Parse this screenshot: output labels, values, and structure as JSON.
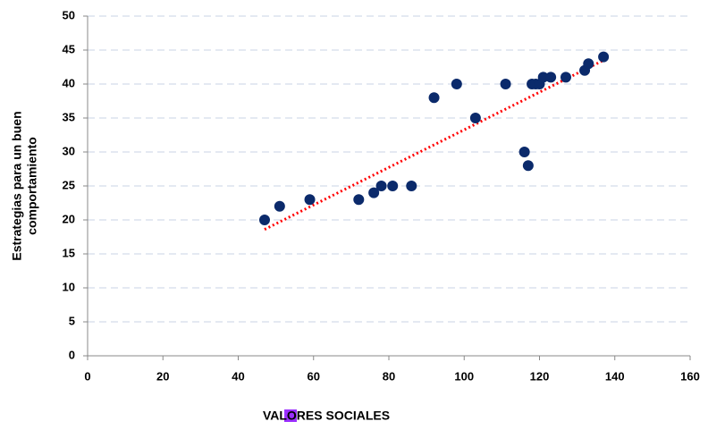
{
  "chart_data": {
    "type": "scatter",
    "x_label": "VALORES SOCIALES",
    "y_label": [
      "Estrategias para un buen",
      "comportamiento"
    ],
    "series": [
      {
        "color": "#0b2a6b",
        "x": [
          47,
          51,
          59,
          72,
          76,
          78,
          81,
          86,
          92,
          98,
          103,
          111,
          116,
          117,
          118,
          119,
          120,
          121,
          123,
          127,
          132,
          133,
          137
        ],
        "values": [
          20,
          22,
          23,
          23,
          24,
          25,
          25,
          25,
          38,
          40,
          35,
          40,
          30,
          28,
          40,
          40,
          40,
          41,
          41,
          41,
          42,
          43,
          44
        ]
      }
    ],
    "trendline": {
      "color": "#ff0000",
      "x": [
        47,
        137
      ],
      "values": [
        18.6,
        43.5
      ]
    },
    "xlim": [
      0,
      160
    ],
    "xticks": [
      0,
      20,
      40,
      60,
      80,
      100,
      120,
      140,
      160
    ],
    "ylim": [
      0,
      50
    ],
    "yticks": [
      0,
      5,
      10,
      15,
      20,
      25,
      30,
      35,
      40,
      45,
      50
    ],
    "grid": true
  }
}
